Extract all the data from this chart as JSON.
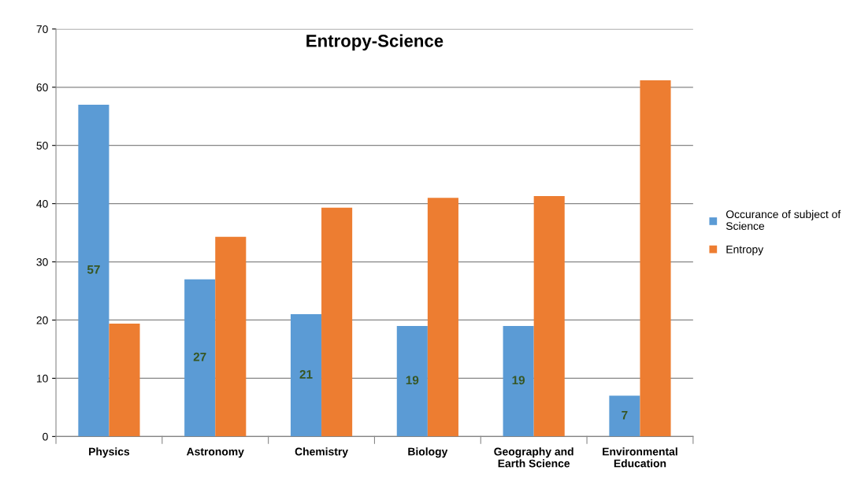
{
  "chart_data": {
    "type": "bar",
    "title": "Entropy-Science",
    "categories": [
      "Physics",
      "Astronomy",
      "Chemistry",
      "Biology",
      "Geography and\nEarth Science",
      "Environmental\nEducation"
    ],
    "series": [
      {
        "name": "Occurance of subject of\nScience",
        "color": "#5b9bd5",
        "values": [
          57,
          27,
          21,
          19,
          19,
          7
        ],
        "value_labels": [
          "57",
          "27",
          "21",
          "19",
          "19",
          "7"
        ]
      },
      {
        "name": "Entropy",
        "color": "#ed7d31",
        "values": [
          19.4,
          34.3,
          39.3,
          41.0,
          41.3,
          61.2
        ]
      }
    ],
    "ylim": [
      0,
      70
    ],
    "yticks": [
      0,
      10,
      20,
      30,
      40,
      50,
      60,
      70
    ],
    "grid": "y",
    "legend": "right"
  }
}
